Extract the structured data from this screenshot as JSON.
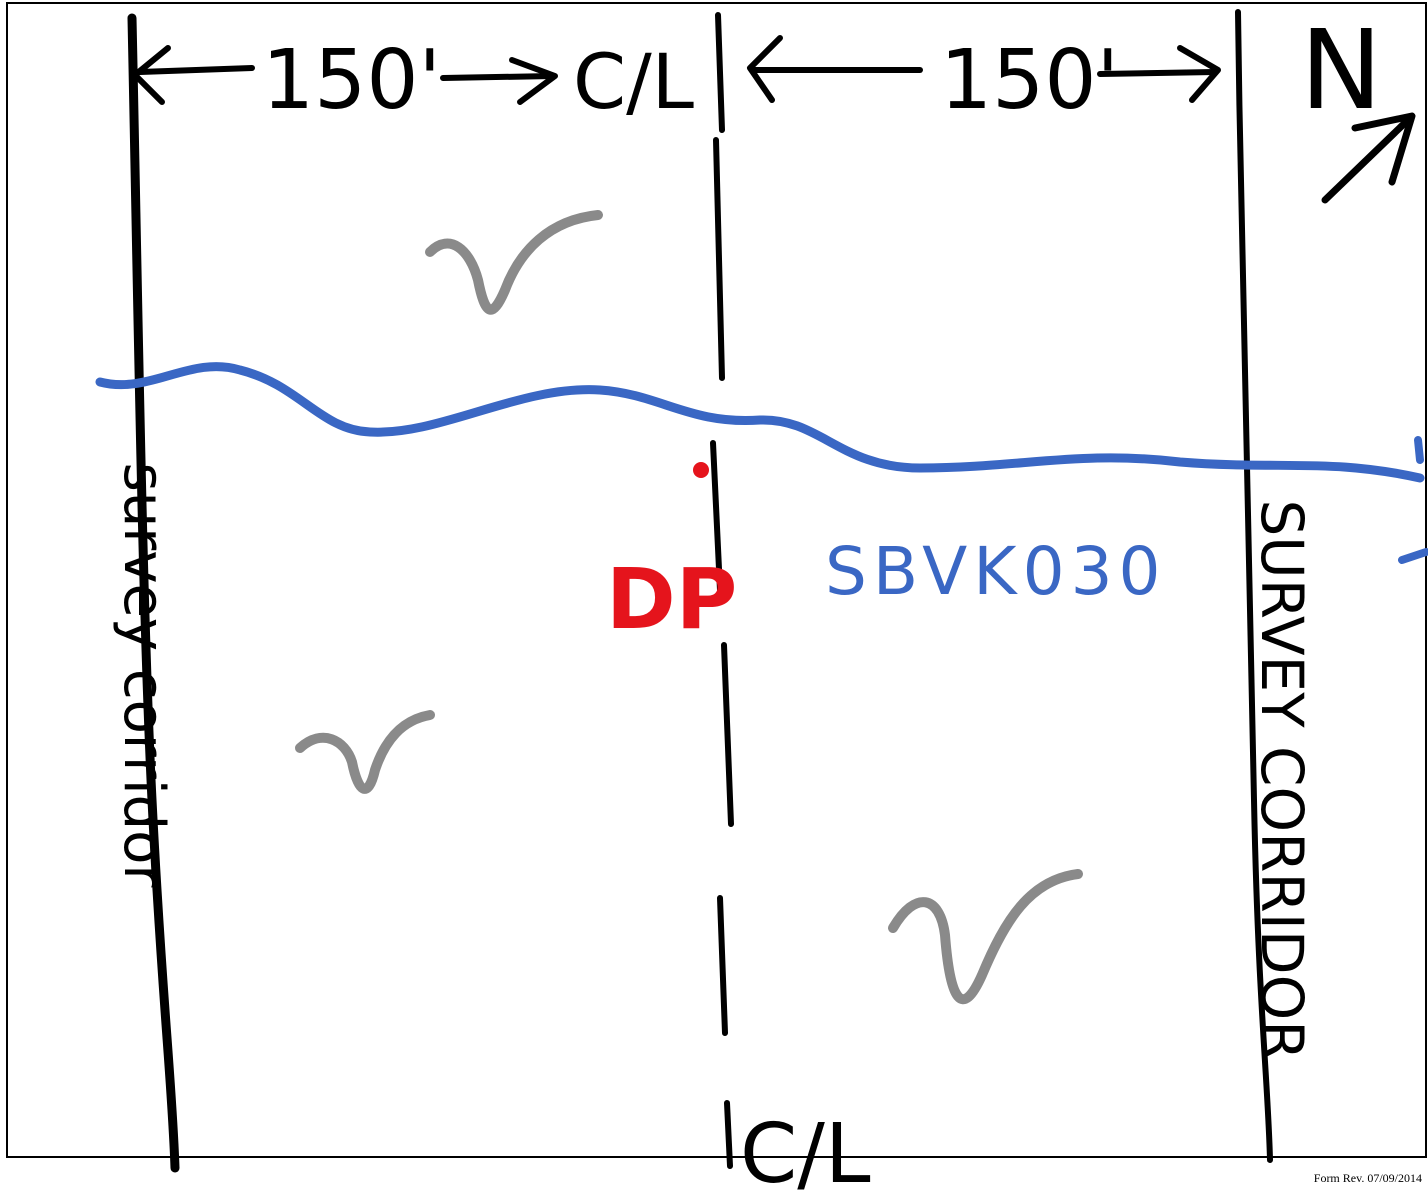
{
  "sketch": {
    "dimension_left": "150'",
    "dimension_right": "150'",
    "centerline_top": "C/L",
    "centerline_bottom": "C/L",
    "north_label": "N",
    "stream_label": "SBVK030",
    "point_label": "DP",
    "corridor_left": "survey corridor",
    "corridor_right": "SURVEY CORRIDOR",
    "wetland_symbol": "v",
    "colors": {
      "ink": "#000000",
      "stream": "#3a67c4",
      "point": "#e5141c",
      "wetland": "#8a8a8a"
    }
  },
  "footer": {
    "form_rev": "Form Rev. 07/09/2014"
  }
}
